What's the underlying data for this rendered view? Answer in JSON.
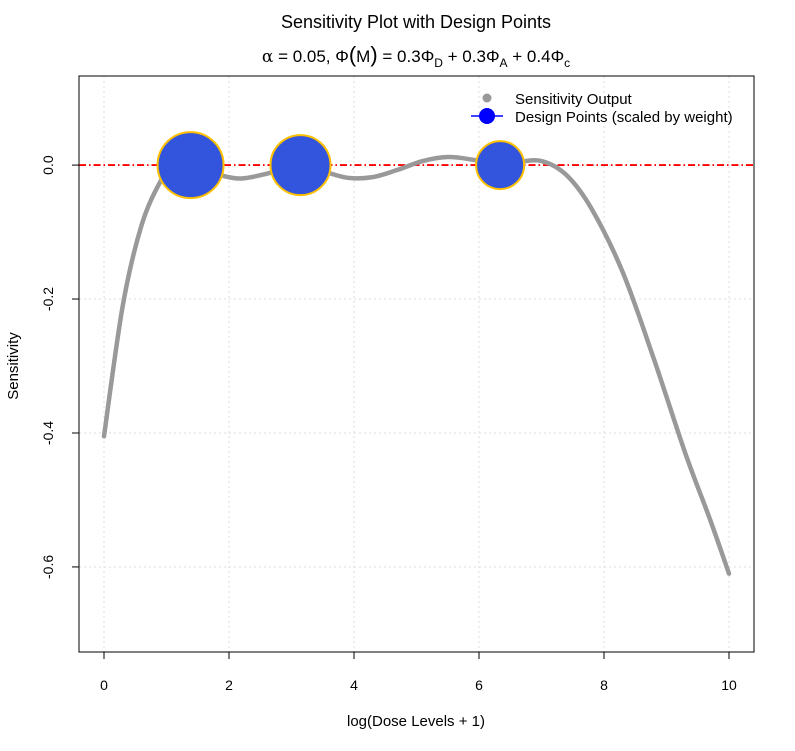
{
  "chart_data": {
    "type": "scatter",
    "title": "Sensitivity Plot with Design Points",
    "subtitle": {
      "alpha_sym": "α",
      "alpha_text": " = 0.05, ",
      "phi_sym": "Φ",
      "paren_open": "(",
      "M": "M",
      "paren_close": ")",
      "eq_text": " = 0.3",
      "phi_d": "Φ",
      "sub_d": "D",
      "plus1": " + 0.3",
      "phi_a": "Φ",
      "sub_a": "A",
      "plus2": " + 0.4",
      "phi_c": "Φ",
      "sub_c": "c"
    },
    "xlabel": "log(Dose Levels + 1)",
    "ylabel": "Sensitivity",
    "xlim": [
      -0.4,
      10.4
    ],
    "ylim": [
      -0.727,
      0.133
    ],
    "xticks": [
      0,
      2,
      4,
      6,
      8,
      10
    ],
    "xtick_labels": [
      "0",
      "2",
      "4",
      "6",
      "8",
      "10"
    ],
    "yticks": [
      0.0,
      -0.2,
      -0.4,
      -0.6
    ],
    "ytick_labels": [
      "0.0",
      "-0.2",
      "-0.4",
      "-0.6"
    ],
    "grid": true,
    "legend_position": "top-right",
    "legend": [
      "Sensitivity Output",
      "Design Points (scaled by weight)"
    ],
    "series": [
      {
        "name": "Sensitivity Output",
        "kind": "curve",
        "color": "#999999",
        "x": [
          0,
          0.3,
          0.6,
          0.9,
          1.1,
          1.385,
          1.6,
          1.9,
          2.2,
          2.6,
          3.0,
          3.144,
          3.5,
          3.9,
          4.3,
          4.7,
          5.1,
          5.5,
          5.9,
          6.2,
          6.338,
          6.6,
          7.0,
          7.4,
          7.8,
          8.3,
          8.8,
          9.3,
          9.7,
          10
        ],
        "y": [
          -0.405,
          -0.21,
          -0.09,
          -0.025,
          -0.003,
          0.0,
          -0.006,
          -0.016,
          -0.02,
          -0.013,
          -0.002,
          0.0,
          -0.009,
          -0.019,
          -0.018,
          -0.007,
          0.006,
          0.012,
          0.008,
          0.002,
          0.0,
          0.004,
          0.006,
          -0.015,
          -0.065,
          -0.16,
          -0.29,
          -0.43,
          -0.53,
          -0.61
        ]
      },
      {
        "name": "Design Points (scaled by weight)",
        "kind": "points",
        "color": "#3355DD",
        "edge_color": "#FFC000",
        "x": [
          1.385,
          3.144,
          6.338
        ],
        "y": [
          0,
          0,
          0
        ],
        "weights": [
          0.4,
          0.35,
          0.25
        ]
      }
    ],
    "reference_line": {
      "y": 0,
      "color": "#FF0000",
      "style": "dot-dash"
    }
  }
}
